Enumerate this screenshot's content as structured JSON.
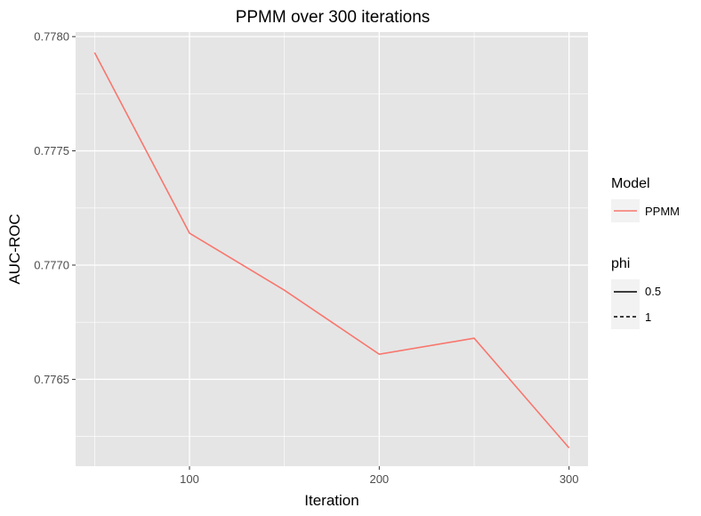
{
  "chart_data": {
    "type": "line",
    "title": "PPMM over 300 iterations",
    "xlabel": "Iteration",
    "ylabel": "AUC-ROC",
    "x": [
      50,
      100,
      150,
      200,
      250,
      300
    ],
    "series": [
      {
        "name": "PPMM",
        "phi": "0.5",
        "color": "#f8766d",
        "values": [
          0.77793,
          0.77714,
          0.77689,
          0.77661,
          0.77668,
          0.7762
        ]
      }
    ],
    "xlim": [
      40,
      310
    ],
    "ylim": [
      0.77612,
      0.77802
    ],
    "xticks": [
      100,
      200,
      300
    ],
    "xtick_labels": [
      "100",
      "200",
      "300"
    ],
    "yticks": [
      0.7765,
      0.777,
      0.7775,
      0.778
    ],
    "ytick_labels": [
      "0.7765",
      "0.7770",
      "0.7775",
      "0.7780"
    ],
    "grid": true,
    "legend_placement": "right",
    "legends": [
      {
        "title": "Model",
        "items": [
          {
            "label": "PPMM",
            "color": "#f8766d",
            "style": "solid"
          }
        ]
      },
      {
        "title": "phi",
        "items": [
          {
            "label": "0.5",
            "color": "#000000",
            "style": "solid"
          },
          {
            "label": "1",
            "color": "#000000",
            "style": "dashed"
          }
        ]
      }
    ],
    "colors": {
      "panel": "#e5e5e5",
      "grid": "#ffffff",
      "line": "#f8766d"
    }
  }
}
